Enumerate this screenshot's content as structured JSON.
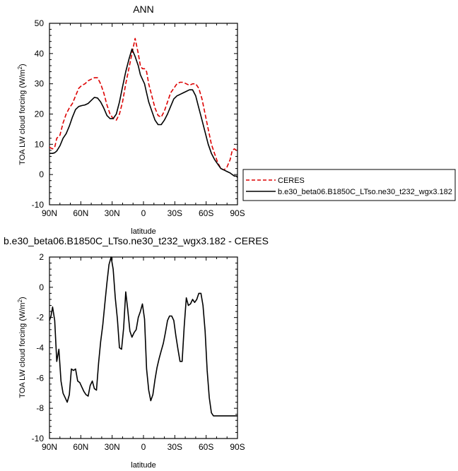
{
  "chart_data": [
    {
      "type": "line",
      "title": "ANN",
      "xlabel": "latitude",
      "ylabel_main": "TOA LW cloud forcing (W/m",
      "ylabel_sup": "2",
      "ylabel_close": ")",
      "xlim": [
        90,
        -90
      ],
      "ylim": [
        -10,
        50
      ],
      "xticks": [
        90,
        60,
        30,
        0,
        -30,
        -60,
        -90
      ],
      "xticklabels": [
        "90N",
        "60N",
        "30N",
        "0",
        "30S",
        "60S",
        "90S"
      ],
      "yticks": [
        -10,
        0,
        10,
        20,
        30,
        40,
        50
      ],
      "yticklabels": [
        "-10",
        "0",
        "10",
        "20",
        "30",
        "40",
        "50"
      ],
      "legend_position": "right",
      "series": [
        {
          "name": "CERES",
          "color": "#dd0000",
          "dash": true,
          "x": [
            90,
            87,
            85,
            83,
            80,
            77,
            74,
            71,
            68,
            65,
            62,
            59,
            56,
            53,
            50,
            47,
            44,
            41,
            38,
            35,
            32,
            29,
            26,
            23,
            20,
            17,
            14,
            11,
            8,
            5,
            3,
            1,
            -1,
            -3,
            -5,
            -8,
            -11,
            -14,
            -17,
            -20,
            -23,
            -26,
            -29,
            -32,
            -35,
            -38,
            -41,
            -44,
            -47,
            -50,
            -53,
            -56,
            -59,
            -62,
            -65,
            -68,
            -71,
            -74,
            -77,
            -80,
            -83,
            -85,
            -87,
            -89,
            -90
          ],
          "y": [
            9,
            8.5,
            9,
            12,
            13,
            17,
            20,
            22,
            23.5,
            26,
            28.5,
            29.5,
            30,
            31,
            31.5,
            32,
            32,
            30,
            27,
            23,
            20,
            18.5,
            18,
            20,
            24,
            30,
            35,
            40,
            45,
            40,
            36,
            35,
            35,
            34,
            30,
            26,
            22,
            19.5,
            19,
            21,
            24,
            27,
            28.5,
            30,
            30.5,
            30.5,
            30,
            29.5,
            30,
            30,
            28.5,
            25,
            20,
            15,
            10,
            7,
            4,
            2,
            1.5,
            2.5,
            5,
            8,
            8.5,
            8,
            8
          ]
        },
        {
          "name": "b.e30_beta06.B1850C_LTso.ne30_t232_wgx3.182",
          "color": "#000000",
          "dash": false,
          "x": [
            90,
            87,
            85,
            83,
            80,
            77,
            74,
            71,
            68,
            65,
            62,
            59,
            56,
            53,
            50,
            47,
            44,
            41,
            38,
            35,
            32,
            29,
            26,
            23,
            20,
            17,
            14,
            11,
            8,
            5,
            3,
            1,
            -1,
            -3,
            -5,
            -8,
            -11,
            -14,
            -17,
            -20,
            -23,
            -26,
            -29,
            -32,
            -35,
            -38,
            -41,
            -44,
            -47,
            -50,
            -53,
            -56,
            -59,
            -62,
            -65,
            -68,
            -71,
            -74,
            -77,
            -80,
            -83,
            -85,
            -87,
            -89,
            -90
          ],
          "y": [
            7,
            7,
            7.2,
            7.8,
            9.5,
            12,
            13.5,
            16,
            19,
            21.5,
            22.5,
            22.8,
            23,
            23.5,
            24.5,
            25.5,
            25.3,
            24,
            22,
            19.5,
            18.5,
            18.5,
            20,
            24,
            29,
            34,
            38,
            41.5,
            39,
            36,
            33,
            31.5,
            30,
            27,
            24,
            21,
            18,
            16.5,
            16.5,
            18,
            20,
            22.5,
            25,
            26,
            26.5,
            27,
            27.5,
            28,
            28,
            26,
            22,
            18,
            14,
            10,
            7,
            5,
            3.5,
            2,
            1.5,
            1,
            0.5,
            0,
            -0.5,
            -0.5,
            -1
          ]
        }
      ]
    },
    {
      "type": "line",
      "title": "b.e30_beta06.B1850C_LTso.ne30_t232_wgx3.182 - CERES",
      "xlabel": "latitude",
      "ylabel_main": "TOA LW cloud forcing (W/m",
      "ylabel_sup": "2",
      "ylabel_close": ")",
      "xlim": [
        90,
        -90
      ],
      "ylim": [
        -10,
        2
      ],
      "xticks": [
        90,
        60,
        30,
        0,
        -30,
        -60,
        -90
      ],
      "xticklabels": [
        "90N",
        "60N",
        "30N",
        "0",
        "30S",
        "60S",
        "90S"
      ],
      "yticks": [
        -10,
        -8,
        -6,
        -4,
        -2,
        0,
        2
      ],
      "yticklabels": [
        "-10",
        "-8",
        "-6",
        "-4",
        "-2",
        "0",
        "2"
      ],
      "series": [
        {
          "color": "#000000",
          "dash": false,
          "x": [
            90,
            88.5,
            87,
            85,
            83,
            81,
            79,
            77,
            75,
            73,
            71,
            69,
            67,
            65,
            63,
            61,
            59,
            57,
            55,
            53,
            51,
            49,
            47,
            45,
            43,
            41,
            39,
            37,
            35,
            33,
            31,
            29,
            27,
            25,
            23,
            21,
            19,
            17,
            15,
            13,
            11,
            9,
            7,
            5,
            3,
            1,
            -1,
            -3,
            -5,
            -7,
            -9,
            -11,
            -13,
            -15,
            -17,
            -19,
            -21,
            -23,
            -25,
            -27,
            -29,
            -31,
            -33,
            -35,
            -37,
            -39,
            -41,
            -43,
            -45,
            -47,
            -49,
            -51,
            -53,
            -55,
            -57,
            -59,
            -61,
            -63,
            -65,
            -67,
            -69,
            -71,
            -73,
            -75,
            -77,
            -79,
            -81,
            -83,
            -85,
            -87,
            -89,
            -90
          ],
          "y": [
            -2.2,
            -1.9,
            -1.3,
            -2.2,
            -4.9,
            -4.1,
            -6.2,
            -7.0,
            -7.3,
            -7.6,
            -7.1,
            -5.4,
            -5.5,
            -5.4,
            -6.2,
            -6.3,
            -6.6,
            -6.9,
            -7.1,
            -7.2,
            -6.5,
            -6.2,
            -6.7,
            -6.8,
            -5.0,
            -3.6,
            -2.5,
            -1.1,
            0.3,
            1.5,
            2.0,
            1.2,
            -0.7,
            -2.1,
            -4.0,
            -4.1,
            -2.7,
            -0.3,
            -1.5,
            -2.9,
            -3.3,
            -3.0,
            -2.8,
            -2.0,
            -1.6,
            -1.1,
            -2.1,
            -5.4,
            -6.8,
            -7.5,
            -7.1,
            -6.1,
            -5.3,
            -4.7,
            -4.2,
            -3.7,
            -3.0,
            -2.2,
            -1.9,
            -1.9,
            -2.2,
            -3.2,
            -4.1,
            -4.9,
            -4.9,
            -2.6,
            -0.7,
            -1.2,
            -1.1,
            -0.8,
            -1.0,
            -0.8,
            -0.4,
            -0.4,
            -1.2,
            -2.9,
            -5.5,
            -7.3,
            -8.3,
            -8.5,
            -8.5,
            -8.5,
            -8.5,
            -8.5,
            -8.5,
            -8.5,
            -8.5,
            -8.5,
            -8.5,
            -8.5,
            -8.5,
            -8.5
          ]
        }
      ]
    }
  ]
}
